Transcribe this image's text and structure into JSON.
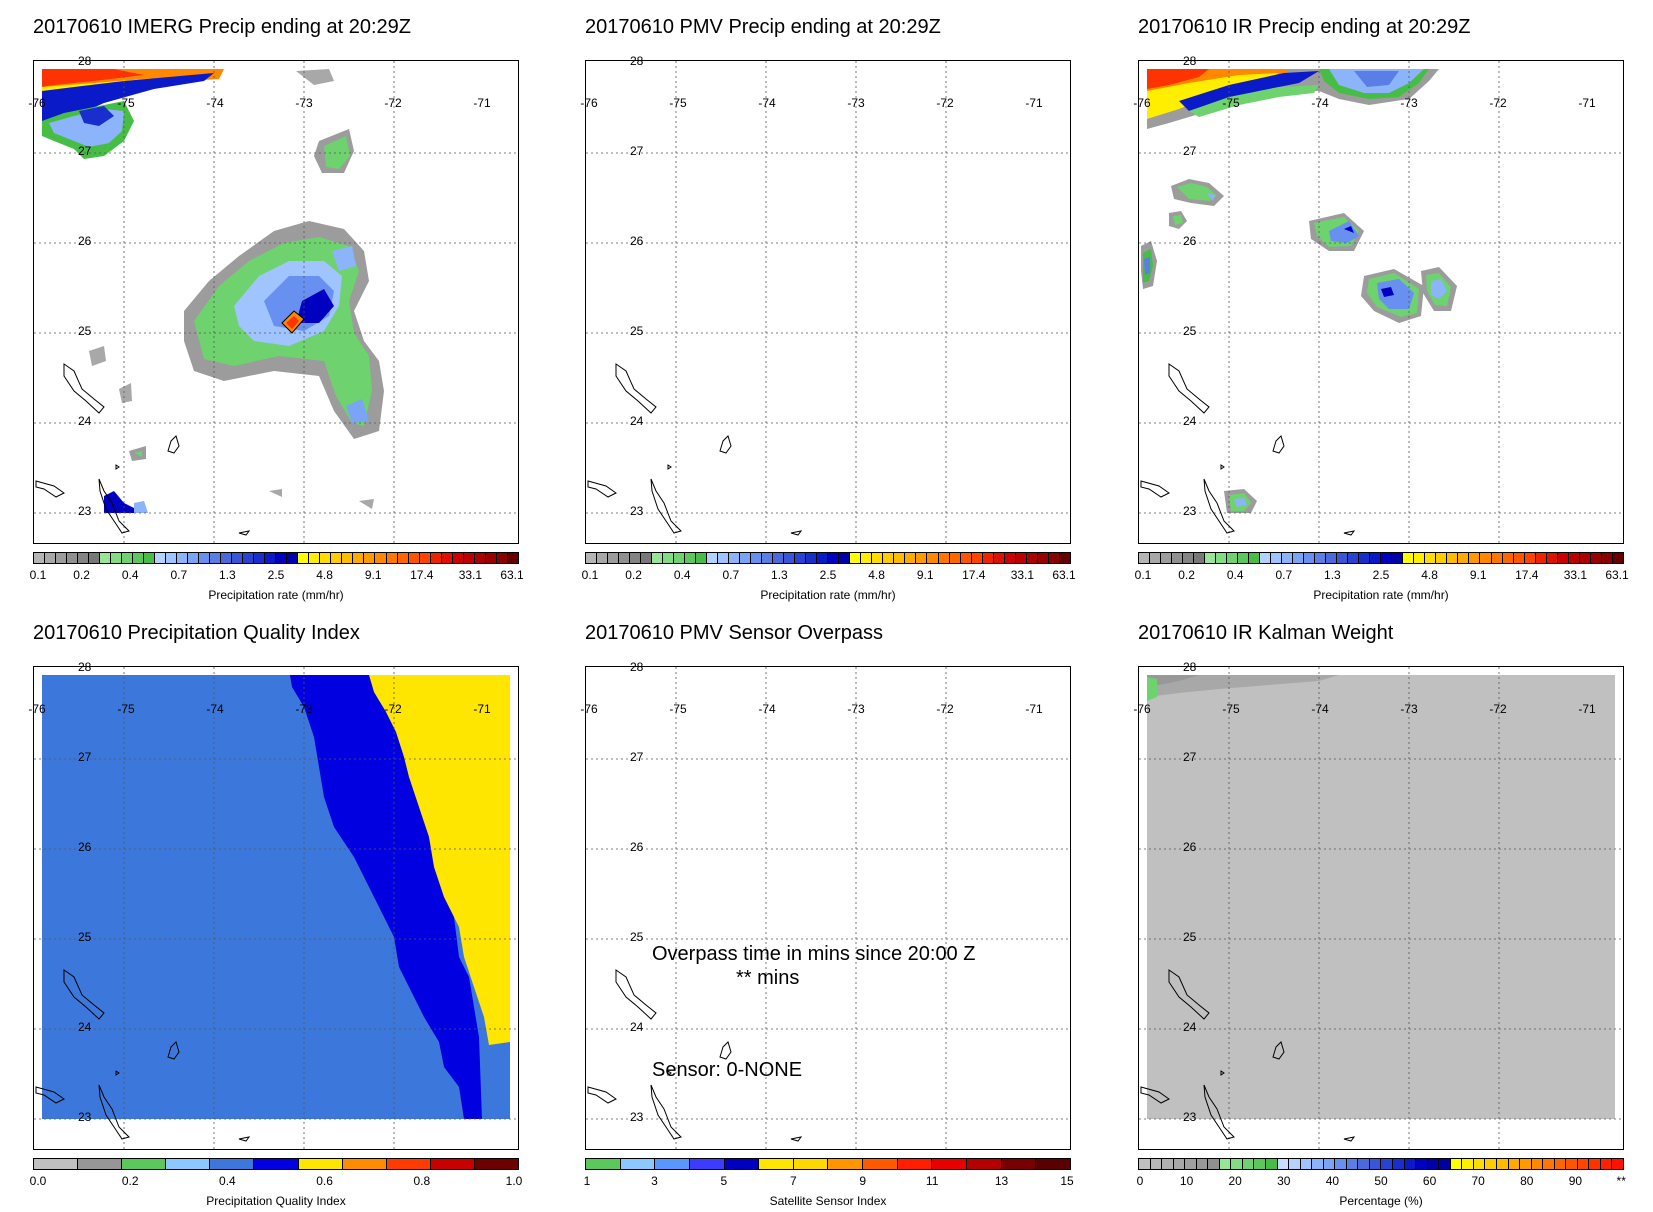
{
  "lon_labels": [
    "-76",
    "-75",
    "-74",
    "-73",
    "-72",
    "-71"
  ],
  "lat_labels": [
    "28",
    "27",
    "26",
    "25",
    "24",
    "23"
  ],
  "precip_colorbar": {
    "ticks": [
      "0.1",
      "0.2",
      "0.4",
      "0.7",
      "1.3",
      "2.5",
      "4.8",
      "9.1",
      "17.4",
      "33.1",
      "63.1"
    ],
    "label": "Precipitation rate (mm/hr)",
    "colors": [
      "#b4b4b4",
      "#a8a8a8",
      "#9c9c9c",
      "#909090",
      "#848484",
      "#787878",
      "#96e696",
      "#82dc82",
      "#6ed26e",
      "#5ac85a",
      "#46be46",
      "#b4d2ff",
      "#a0c4ff",
      "#8cb4fa",
      "#7aa4f5",
      "#6890f0",
      "#5a7ee6",
      "#4a6adc",
      "#3a56d6",
      "#2a42d2",
      "#1a2ece",
      "#0a1ac8",
      "#0000c0",
      "#0000a8",
      "#ffff00",
      "#ffee00",
      "#ffdd00",
      "#ffcc00",
      "#ffbb00",
      "#ffaa00",
      "#ff9900",
      "#ff8800",
      "#ff7700",
      "#ff6600",
      "#ff5500",
      "#ff4400",
      "#ee2200",
      "#dd1100",
      "#cc0000",
      "#bb0000",
      "#aa0000",
      "#990000",
      "#880000",
      "#660000"
    ]
  },
  "panels": {
    "imerg": {
      "title": "20170610 IMERG Precip ending at 20:29Z"
    },
    "pmv": {
      "title": "20170610 PMV Precip ending at 20:29Z"
    },
    "ir": {
      "title": "20170610 IR Precip ending at 20:29Z"
    },
    "pqi": {
      "title": "20170610 Precipitation Quality Index",
      "colorbar": {
        "ticks": [
          "0.0",
          "0.2",
          "0.4",
          "0.6",
          "0.8",
          "1.0"
        ],
        "label": "Precipitation Quality Index",
        "colors": [
          "#c0c0c0",
          "#969696",
          "#5ac85a",
          "#8cc8ff",
          "#3c78dc",
          "#0000e0",
          "#ffe600",
          "#ff8c00",
          "#ff3c00",
          "#c80000",
          "#6e0000"
        ]
      }
    },
    "sensor": {
      "title": "20170610 PMV Sensor Overpass",
      "overpass_text": "Overpass time in mins since 20:00 Z",
      "mins_text": "** mins",
      "sensor_text": "Sensor:   0-NONE",
      "colorbar": {
        "ticks": [
          "1",
          "3",
          "5",
          "7",
          "9",
          "11",
          "13",
          "15"
        ],
        "label": "Satellite Sensor Index",
        "colors": [
          "#5ac85a",
          "#8cc8ff",
          "#5a96ff",
          "#3c3cff",
          "#0000c0",
          "#ffe600",
          "#ffd700",
          "#ff9600",
          "#ff5a00",
          "#ff1e00",
          "#e60000",
          "#b40000",
          "#780000",
          "#5a0000"
        ]
      }
    },
    "kalman": {
      "title": "20170610 IR Kalman Weight",
      "colorbar": {
        "ticks": [
          "0",
          "10",
          "20",
          "30",
          "40",
          "50",
          "60",
          "70",
          "80",
          "90",
          "**"
        ],
        "label": "Percentage (%)",
        "colors": [
          "#c0c0c0",
          "#b8b8b8",
          "#b0b0b0",
          "#a8a8a8",
          "#a0a0a0",
          "#989898",
          "#909090",
          "#96e696",
          "#82dc82",
          "#6ed26e",
          "#5ac85a",
          "#46be46",
          "#c8dcff",
          "#b4d2ff",
          "#a0c4ff",
          "#8cb4fa",
          "#7aa4f5",
          "#6890f0",
          "#5a7ee6",
          "#4a6adc",
          "#3a56d6",
          "#2a42d2",
          "#1a2ece",
          "#0a1ac8",
          "#0000c0",
          "#0000a8",
          "#0000a0",
          "#ffff00",
          "#ffee00",
          "#ffdd00",
          "#ffcc00",
          "#ffbb00",
          "#ffaa00",
          "#ff9900",
          "#ff8800",
          "#ff7700",
          "#ff6600",
          "#ff5500",
          "#ff4400",
          "#ff3300",
          "#ff2200",
          "#ff1100"
        ]
      }
    }
  }
}
